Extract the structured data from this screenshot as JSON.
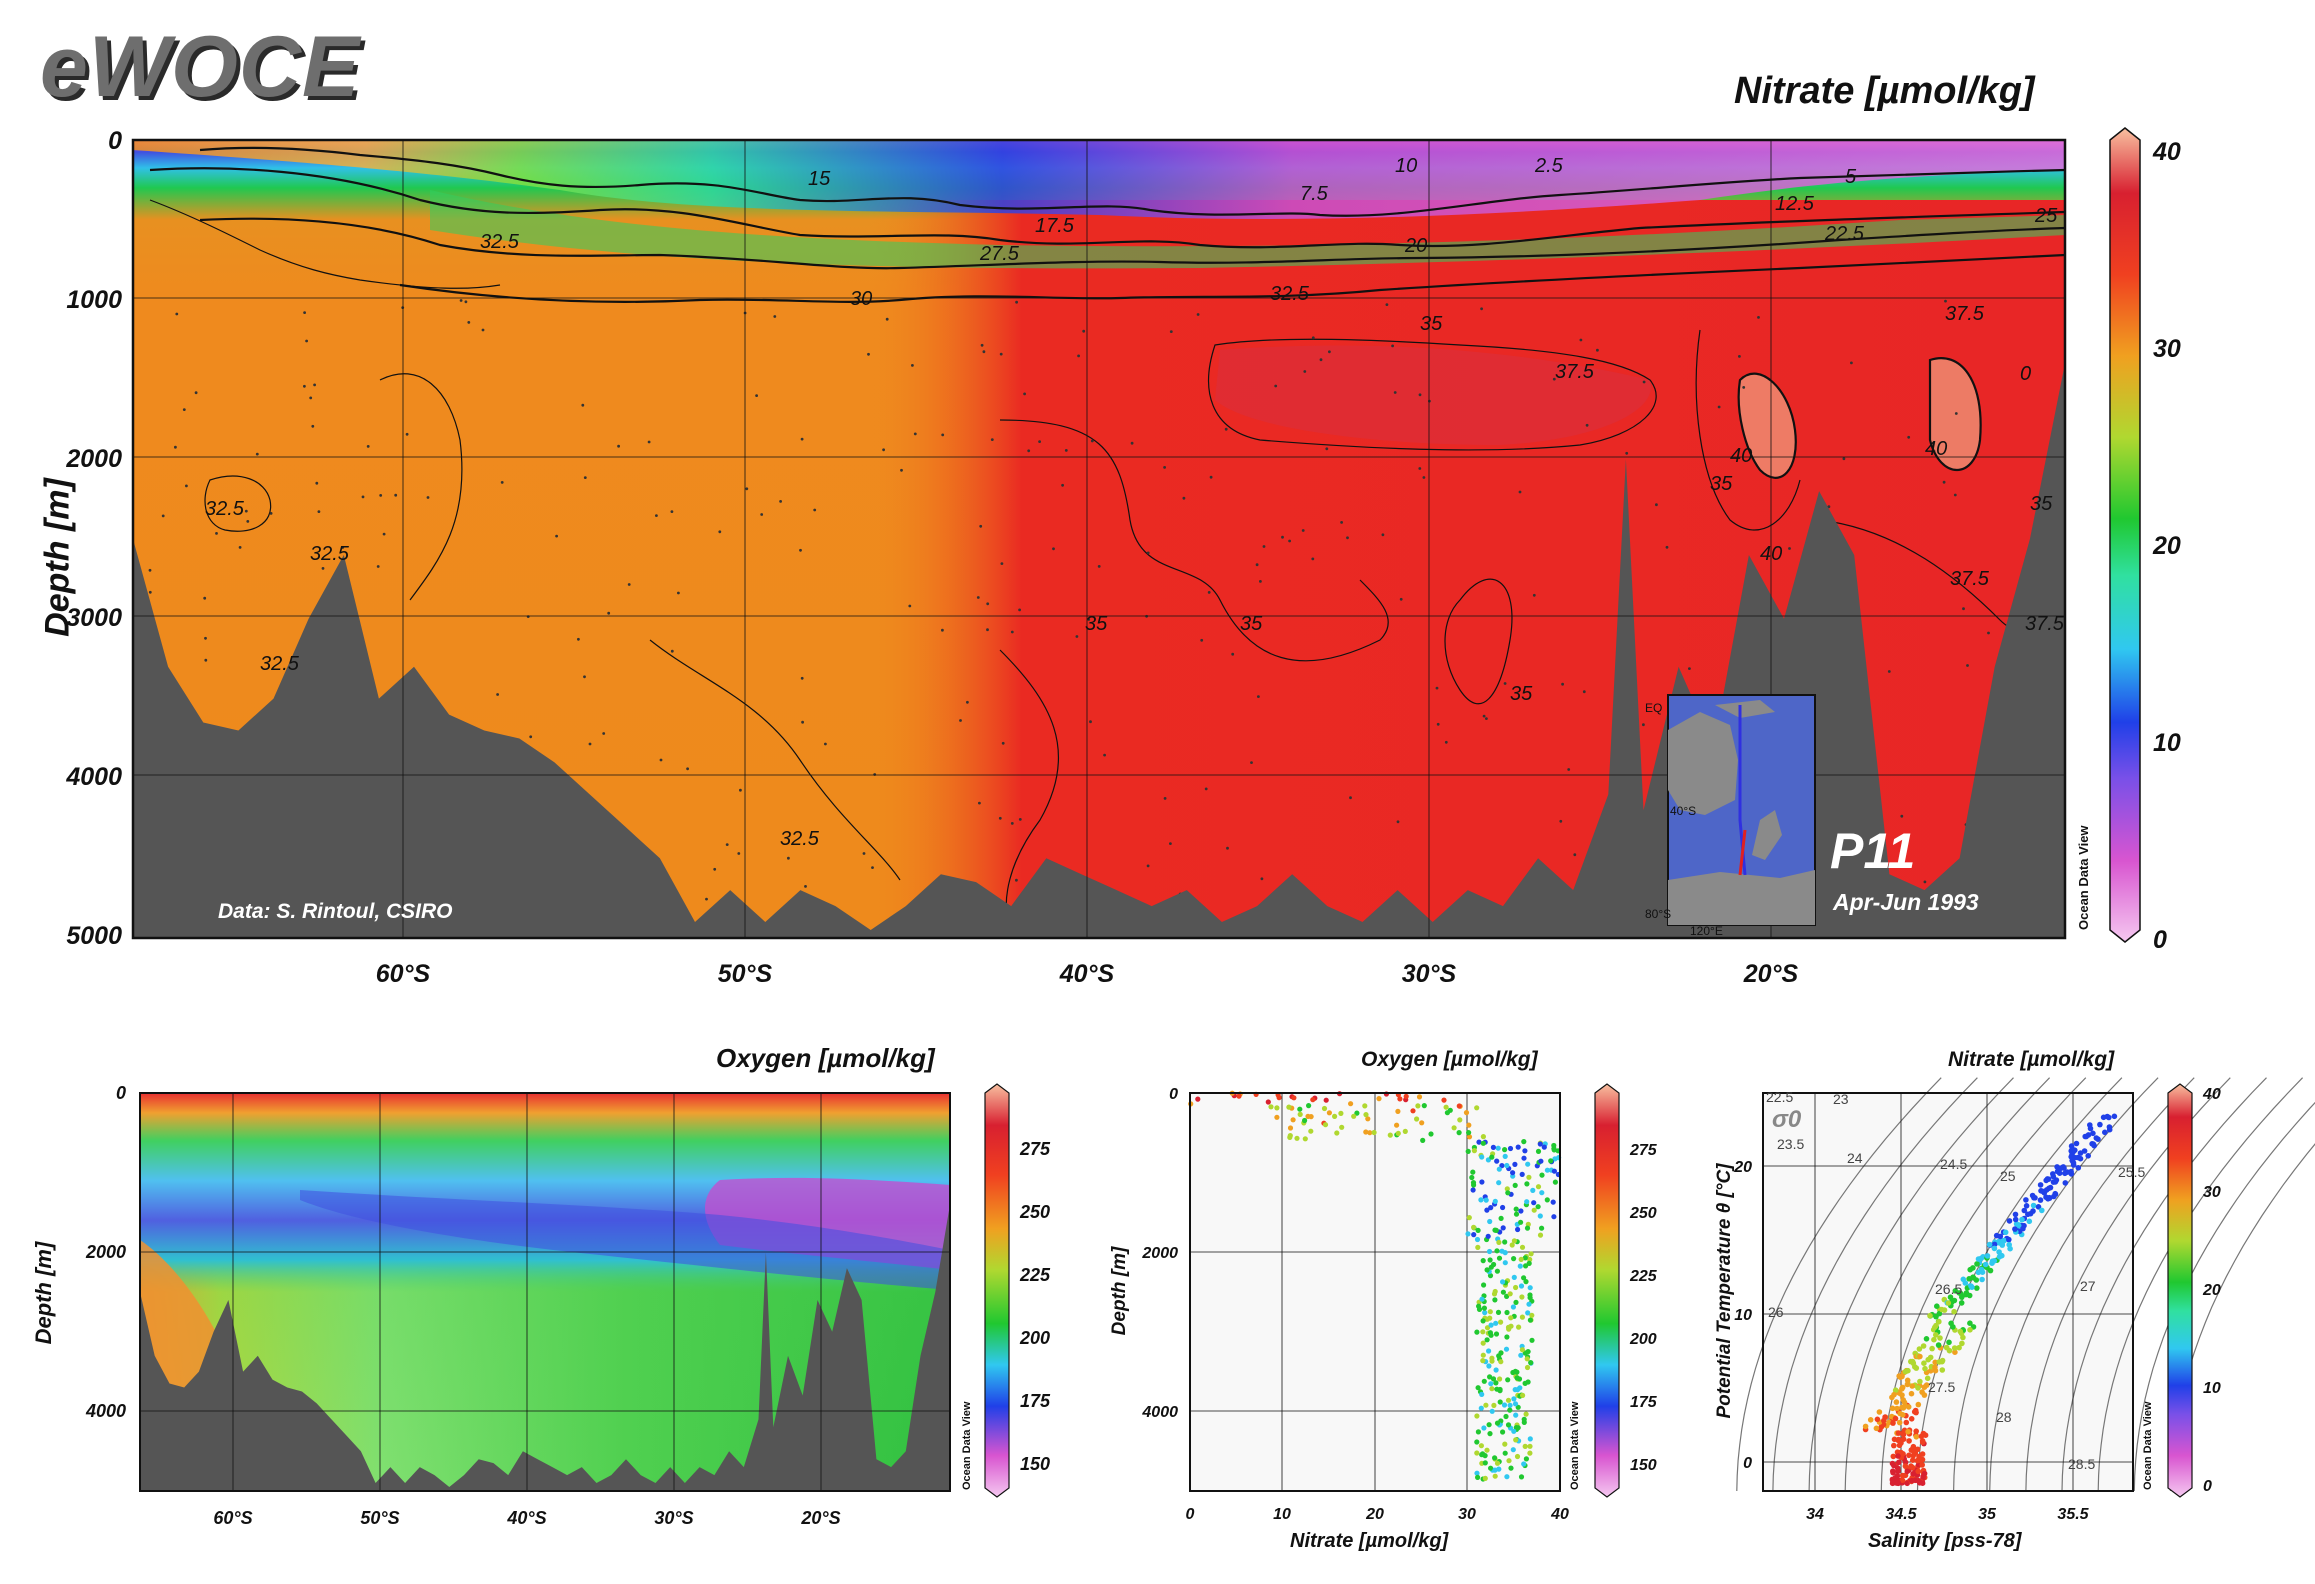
{
  "logo": "eWOCE",
  "main": {
    "title": "Nitrate [µmol/kg]",
    "ylabel": "Depth [m]",
    "credit": "Data: S. Rintoul, CSIRO",
    "section_name": "P11",
    "section_dates": "Apr-Jun 1993",
    "odv_label": "Ocean Data View",
    "y_ticks": [
      "0",
      "1000",
      "2000",
      "3000",
      "4000",
      "5000"
    ],
    "x_ticks": [
      "60°S",
      "50°S",
      "40°S",
      "30°S",
      "20°S"
    ],
    "colorbar_ticks": [
      "40",
      "30",
      "20",
      "10",
      "0"
    ],
    "contour_labels": [
      "2.5",
      "5",
      "7.5",
      "10",
      "12.5",
      "15",
      "17.5",
      "20",
      "22.5",
      "25",
      "27.5",
      "30",
      "32.5",
      "35",
      "37.5",
      "40",
      "0"
    ],
    "inset": {
      "labels": [
        "EQ",
        "40°S",
        "80°S",
        "120°E"
      ]
    }
  },
  "oxygen_section": {
    "title": "Oxygen [µmol/kg]",
    "ylabel": "Depth [m]",
    "y_ticks": [
      "0",
      "2000",
      "4000"
    ],
    "x_ticks": [
      "60°S",
      "50°S",
      "40°S",
      "30°S",
      "20°S"
    ],
    "colorbar_ticks": [
      "275",
      "250",
      "225",
      "200",
      "175",
      "150"
    ],
    "odv_label": "Ocean Data View"
  },
  "profile": {
    "title": "Oxygen [µmol/kg]",
    "ylabel": "Depth [m]",
    "xlabel": "Nitrate [µmol/kg]",
    "y_ticks": [
      "0",
      "2000",
      "4000"
    ],
    "x_ticks": [
      "0",
      "10",
      "20",
      "30",
      "40"
    ],
    "colorbar_ticks": [
      "275",
      "250",
      "225",
      "200",
      "175",
      "150"
    ],
    "odv_label": "Ocean Data View"
  },
  "ts": {
    "title": "Nitrate [µmol/kg]",
    "ylabel": "Potential Temperature θ [°C]",
    "xlabel": "Salinity [pss-78]",
    "sigma_label": "σ0",
    "y_ticks": [
      "20",
      "10",
      "0"
    ],
    "x_ticks": [
      "34",
      "34.5",
      "35",
      "35.5"
    ],
    "isopycnal_labels": [
      "22.5",
      "23",
      "23.5",
      "24",
      "24.5",
      "25",
      "25.5",
      "26",
      "26.5",
      "27",
      "27.5",
      "28",
      "28.5"
    ],
    "colorbar_ticks": [
      "40",
      "30",
      "20",
      "10",
      "0"
    ],
    "odv_label": "Ocean Data View"
  },
  "chart_data": [
    {
      "type": "heatmap",
      "title": "Nitrate [µmol/kg]",
      "ylabel": "Depth [m]",
      "xlabel": "",
      "x_ticks": [
        "60°S",
        "50°S",
        "40°S",
        "30°S",
        "20°S"
      ],
      "xlim": [
        -66,
        -11
      ],
      "ylim": [
        5000,
        0
      ],
      "colorbar": {
        "min": 0,
        "max": 40,
        "ticks": [
          0,
          10,
          20,
          30,
          40
        ]
      },
      "contour_levels": [
        0,
        2.5,
        5,
        7.5,
        10,
        12.5,
        15,
        17.5,
        20,
        22.5,
        25,
        27.5,
        30,
        32.5,
        35,
        37.5,
        40
      ],
      "bathymetry_depth_m": [
        [
          -66,
          2500
        ],
        [
          -65,
          3300
        ],
        [
          -64,
          3650
        ],
        [
          -63,
          3700
        ],
        [
          -62,
          3500
        ],
        [
          -61,
          3000
        ],
        [
          -60,
          2600
        ],
        [
          -59,
          3500
        ],
        [
          -58,
          3300
        ],
        [
          -57,
          3600
        ],
        [
          -56,
          3700
        ],
        [
          -55,
          3750
        ],
        [
          -54,
          3900
        ],
        [
          -53,
          4100
        ],
        [
          -52,
          4300
        ],
        [
          -51,
          4500
        ],
        [
          -50,
          4900
        ],
        [
          -49,
          4700
        ],
        [
          -48,
          4900
        ],
        [
          -47,
          4700
        ],
        [
          -46,
          4800
        ],
        [
          -45,
          4950
        ],
        [
          -44,
          4800
        ],
        [
          -43,
          4600
        ],
        [
          -42,
          4650
        ],
        [
          -41,
          4800
        ],
        [
          -40,
          4500
        ],
        [
          -39,
          4600
        ],
        [
          -38,
          4700
        ],
        [
          -37,
          4800
        ],
        [
          -36,
          4700
        ],
        [
          -35,
          4900
        ],
        [
          -34,
          4800
        ],
        [
          -33,
          4600
        ],
        [
          -32,
          4800
        ],
        [
          -31,
          4900
        ],
        [
          -30,
          4700
        ],
        [
          -29,
          4900
        ],
        [
          -28,
          4700
        ],
        [
          -27,
          4800
        ],
        [
          -26,
          4500
        ],
        [
          -25,
          4700
        ],
        [
          -24,
          4100
        ],
        [
          -23.5,
          2000
        ],
        [
          -23,
          4200
        ],
        [
          -22,
          3300
        ],
        [
          -21,
          3800
        ],
        [
          -20,
          2600
        ],
        [
          -19,
          3000
        ],
        [
          -18,
          2200
        ],
        [
          -17,
          2600
        ],
        [
          -16,
          4600
        ],
        [
          -15,
          4700
        ],
        [
          -14,
          4500
        ],
        [
          -13,
          3300
        ],
        [
          -12,
          2500
        ],
        [
          -11,
          1400
        ]
      ]
    },
    {
      "type": "heatmap",
      "title": "Oxygen [µmol/kg]",
      "ylabel": "Depth [m]",
      "x_ticks": [
        "60°S",
        "50°S",
        "40°S",
        "30°S",
        "20°S"
      ],
      "xlim": [
        -66,
        -11
      ],
      "ylim": [
        5000,
        0
      ],
      "colorbar": {
        "min": 140,
        "max": 290,
        "ticks": [
          150,
          175,
          200,
          225,
          250,
          275
        ]
      }
    },
    {
      "type": "scatter",
      "title": "Oxygen [µmol/kg]",
      "xlabel": "Nitrate [µmol/kg]",
      "ylabel": "Depth [m]",
      "xlim": [
        0,
        40
      ],
      "ylim": [
        5000,
        0
      ],
      "x_ticks": [
        0,
        10,
        20,
        30,
        40
      ],
      "y_ticks": [
        0,
        2000,
        4000
      ],
      "color_variable": "Oxygen [µmol/kg]",
      "colorbar": {
        "min": 140,
        "max": 290,
        "ticks": [
          150,
          175,
          200,
          225,
          250,
          275
        ]
      }
    },
    {
      "type": "scatter",
      "title": "Nitrate [µmol/kg]",
      "xlabel": "Salinity [pss-78]",
      "ylabel": "Potential Temperature θ [°C]",
      "xlim": [
        33.7,
        35.85
      ],
      "ylim": [
        -1,
        25
      ],
      "x_ticks": [
        34,
        34.5,
        35,
        35.5
      ],
      "y_ticks": [
        0,
        10,
        20
      ],
      "color_variable": "Nitrate [µmol/kg]",
      "colorbar": {
        "min": 0,
        "max": 40,
        "ticks": [
          0,
          10,
          20,
          30,
          40
        ]
      },
      "isopycnals": [
        22.5,
        23,
        23.5,
        24,
        24.5,
        25,
        25.5,
        26,
        26.5,
        27,
        27.5,
        28,
        28.5
      ]
    }
  ]
}
